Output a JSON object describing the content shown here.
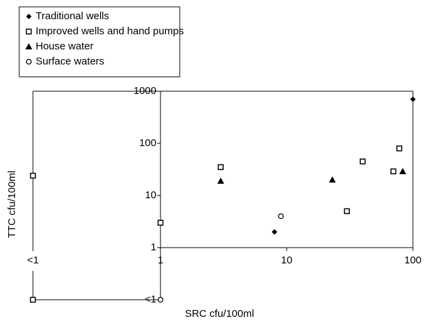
{
  "chart_data": {
    "type": "scatter",
    "x_label": "SRC cfu/100ml",
    "y_label": "TTC cfu/100ml",
    "log_x": true,
    "log_y": true,
    "xticks": [
      "<1",
      1,
      10,
      100
    ],
    "yticks": [
      "<1",
      1,
      10,
      100,
      1000
    ],
    "xlim": [
      1,
      100
    ],
    "ylim": [
      1,
      1000
    ],
    "legend": "top-left",
    "series": [
      {
        "name": "Traditional wells",
        "marker": "diamond",
        "color": "#000000",
        "x": [
          8,
          100
        ],
        "y": [
          2,
          700
        ]
      },
      {
        "name": "Improved wells and hand pumps",
        "marker": "square",
        "color": "#000000",
        "x": [
          "<1",
          1,
          3,
          30,
          40,
          70,
          78,
          "<1"
        ],
        "y": [
          24,
          3,
          35,
          5,
          45,
          29,
          80,
          "<1"
        ]
      },
      {
        "name": "House water",
        "marker": "triangle",
        "color": "#000000",
        "x": [
          3,
          23,
          83
        ],
        "y": [
          19,
          20,
          29
        ]
      },
      {
        "name": "Surface waters",
        "marker": "circle",
        "color": "#000000",
        "x": [
          9,
          1
        ],
        "y": [
          4,
          "<1"
        ]
      }
    ]
  }
}
